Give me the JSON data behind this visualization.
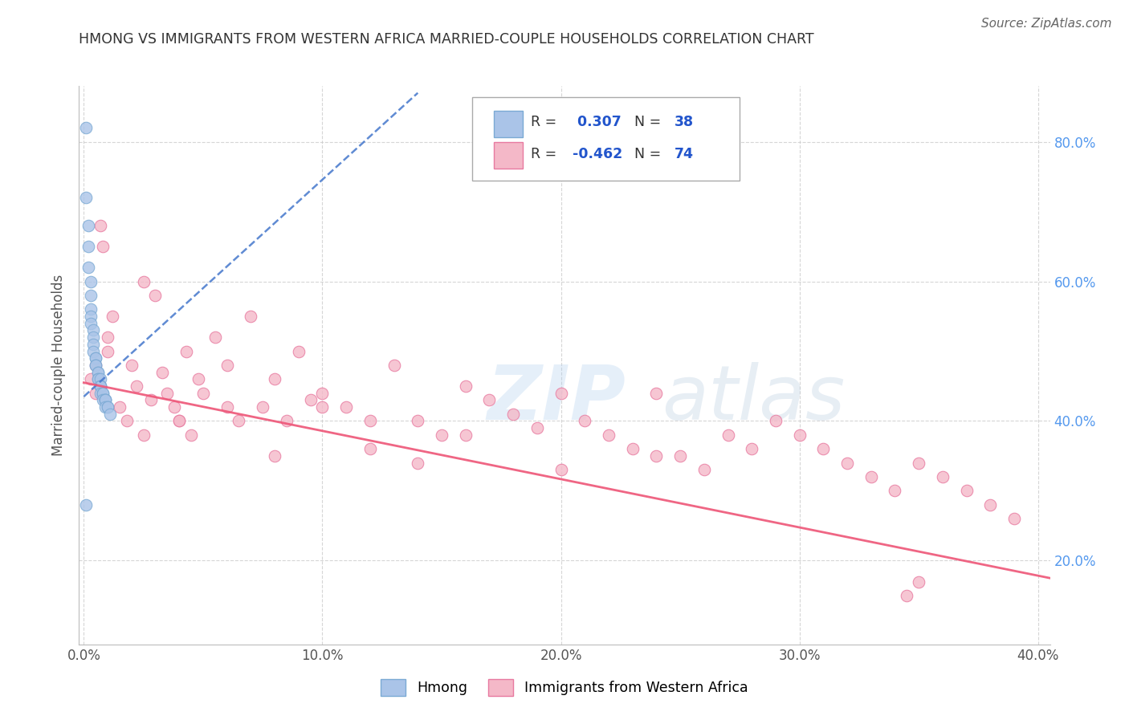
{
  "title": "HMONG VS IMMIGRANTS FROM WESTERN AFRICA MARRIED-COUPLE HOUSEHOLDS CORRELATION CHART",
  "source": "Source: ZipAtlas.com",
  "ylabel": "Married-couple Households",
  "xlim": [
    -0.002,
    0.405
  ],
  "ylim": [
    0.08,
    0.88
  ],
  "xticks": [
    0.0,
    0.1,
    0.2,
    0.3,
    0.4
  ],
  "yticks": [
    0.2,
    0.4,
    0.6,
    0.8
  ],
  "xtick_labels": [
    "0.0%",
    "10.0%",
    "20.0%",
    "30.0%",
    "40.0%"
  ],
  "ytick_labels": [
    "20.0%",
    "40.0%",
    "60.0%",
    "80.0%"
  ],
  "background_color": "#ffffff",
  "grid_color": "#cccccc",
  "hmong_color": "#aac4e8",
  "hmong_edge_color": "#7baad4",
  "west_africa_color": "#f4b8c8",
  "west_africa_edge_color": "#e87aa0",
  "hmong_R": 0.307,
  "hmong_N": 38,
  "west_africa_R": -0.462,
  "west_africa_N": 74,
  "legend_R_color": "#2255cc",
  "hmong_x": [
    0.001,
    0.001,
    0.002,
    0.002,
    0.002,
    0.003,
    0.003,
    0.003,
    0.003,
    0.003,
    0.004,
    0.004,
    0.004,
    0.004,
    0.005,
    0.005,
    0.005,
    0.005,
    0.006,
    0.006,
    0.006,
    0.006,
    0.007,
    0.007,
    0.007,
    0.007,
    0.007,
    0.008,
    0.008,
    0.008,
    0.009,
    0.009,
    0.009,
    0.009,
    0.01,
    0.01,
    0.011,
    0.001
  ],
  "hmong_y": [
    0.82,
    0.72,
    0.68,
    0.65,
    0.62,
    0.6,
    0.58,
    0.56,
    0.55,
    0.54,
    0.53,
    0.52,
    0.51,
    0.5,
    0.49,
    0.49,
    0.48,
    0.48,
    0.47,
    0.47,
    0.46,
    0.46,
    0.46,
    0.45,
    0.45,
    0.45,
    0.44,
    0.44,
    0.44,
    0.43,
    0.43,
    0.43,
    0.43,
    0.42,
    0.42,
    0.42,
    0.41,
    0.28
  ],
  "west_africa_x": [
    0.003,
    0.005,
    0.007,
    0.008,
    0.01,
    0.012,
    0.015,
    0.018,
    0.02,
    0.022,
    0.025,
    0.028,
    0.03,
    0.033,
    0.035,
    0.038,
    0.04,
    0.043,
    0.045,
    0.048,
    0.05,
    0.055,
    0.06,
    0.065,
    0.07,
    0.075,
    0.08,
    0.085,
    0.09,
    0.095,
    0.1,
    0.11,
    0.12,
    0.13,
    0.14,
    0.15,
    0.16,
    0.17,
    0.18,
    0.19,
    0.2,
    0.21,
    0.22,
    0.23,
    0.24,
    0.25,
    0.26,
    0.27,
    0.28,
    0.29,
    0.3,
    0.31,
    0.32,
    0.33,
    0.34,
    0.35,
    0.36,
    0.37,
    0.38,
    0.39,
    0.025,
    0.04,
    0.06,
    0.08,
    0.1,
    0.12,
    0.14,
    0.16,
    0.2,
    0.24,
    0.005,
    0.01,
    0.345,
    0.35
  ],
  "west_africa_y": [
    0.46,
    0.44,
    0.68,
    0.65,
    0.5,
    0.55,
    0.42,
    0.4,
    0.48,
    0.45,
    0.6,
    0.43,
    0.58,
    0.47,
    0.44,
    0.42,
    0.4,
    0.5,
    0.38,
    0.46,
    0.44,
    0.52,
    0.48,
    0.4,
    0.55,
    0.42,
    0.46,
    0.4,
    0.5,
    0.43,
    0.44,
    0.42,
    0.4,
    0.48,
    0.4,
    0.38,
    0.45,
    0.43,
    0.41,
    0.39,
    0.44,
    0.4,
    0.38,
    0.36,
    0.44,
    0.35,
    0.33,
    0.38,
    0.36,
    0.4,
    0.38,
    0.36,
    0.34,
    0.32,
    0.3,
    0.34,
    0.32,
    0.3,
    0.28,
    0.26,
    0.38,
    0.4,
    0.42,
    0.35,
    0.42,
    0.36,
    0.34,
    0.38,
    0.33,
    0.35,
    0.48,
    0.52,
    0.15,
    0.17
  ],
  "blue_trendline_x": [
    0.0,
    0.14
  ],
  "blue_trendline_y": [
    0.435,
    0.87
  ],
  "pink_trendline_x": [
    0.0,
    0.405
  ],
  "pink_trendline_y": [
    0.455,
    0.175
  ]
}
